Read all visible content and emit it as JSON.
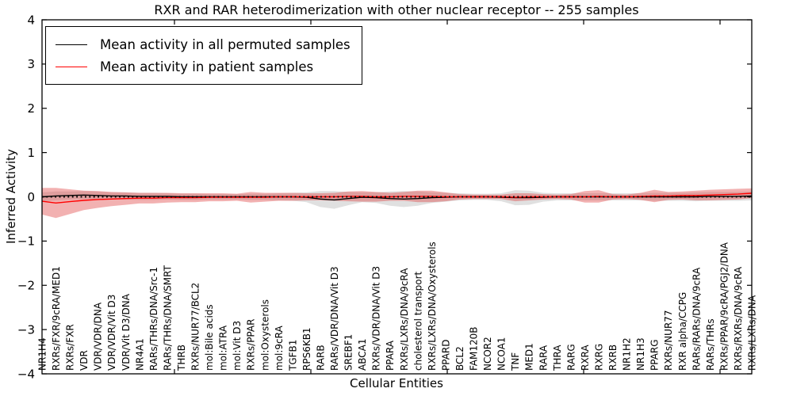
{
  "title": "RXR and RAR heterodimerization with other nuclear receptor -- 255 samples",
  "axes": {
    "x_label": "Cellular Entities",
    "y_label": "Inferred Activity",
    "y_tick_labels": [
      "4",
      "3",
      "2",
      "1",
      "0",
      "−1",
      "−2",
      "−3",
      "−4"
    ],
    "y_tick_values": [
      4,
      3,
      2,
      1,
      0,
      -1,
      -2,
      -3,
      -4
    ]
  },
  "legend": {
    "items": [
      {
        "label": "Mean activity in all permuted samples",
        "color": "#000000"
      },
      {
        "label": "Mean activity in patient samples",
        "color": "#ff0000"
      }
    ]
  },
  "colors": {
    "permuted_line": "#000000",
    "patient_line": "#ff0000",
    "permuted_band": "#999999",
    "patient_band": "#dd3333",
    "zero_line": "#000000",
    "axis": "#000000"
  },
  "chart_data": {
    "type": "line",
    "title": "RXR and RAR heterodimerization with other nuclear receptor -- 255 samples",
    "xlabel": "Cellular Entities",
    "ylabel": "Inferred Activity",
    "ylim": [
      -4,
      4
    ],
    "grid": false,
    "legend_position": "upper left",
    "zero_line_dotted": true,
    "categories": [
      "NR1H4",
      "RXRs/FXR/9cRA/MED1",
      "RXRs/FXR",
      "VDR",
      "VDR/VDR/DNA",
      "VDR/VDR/Vit D3",
      "VDR/Vit D3/DNA",
      "NR4A1",
      "RARs/THRs/DNA/Src-1",
      "RARs/THRs/DNA/SMRT",
      "THRB",
      "RXRs/NUR77/BCL2",
      "mol:Bile acids",
      "mol:ATRA",
      "mol:Vit D3",
      "RXRs/PPAR",
      "mol:Oxysterols",
      "mol:9cRA",
      "TGFB1",
      "RPS6KB1",
      "RARB",
      "RARs/VDR/DNA/Vit D3",
      "SREBF1",
      "ABCA1",
      "RXRs/VDR/DNA/Vit D3",
      "PPARA",
      "RXRs/LXRs/DNA/9cRA",
      "cholesterol transport",
      "RXRs/LXRs/DNA/Oxysterols",
      "PPARD",
      "BCL2",
      "FAM120B",
      "NCOR2",
      "NCOA1",
      "TNF",
      "MED1",
      "RARA",
      "THRA",
      "RARG",
      "RXRA",
      "RXRG",
      "RXRB",
      "NR1H2",
      "NR1H3",
      "PPARG",
      "RXRs/NUR77",
      "RXR alpha/CCPG",
      "RARs/RARs/DNA/9cRA",
      "RARs/THRs",
      "RXRs/PPAR/9cRA/PGJ2/DNA",
      "RXRs/RXRs/DNA/9cRA",
      "RXRs/LXRs/DNA"
    ],
    "series": [
      {
        "name": "Mean activity in all permuted samples",
        "color": "#000000",
        "band_color": "#999999",
        "band_opacity": 0.3,
        "values": [
          0.0,
          0.02,
          0.03,
          0.04,
          0.03,
          0.02,
          0.02,
          0.01,
          0.01,
          0.01,
          0.0,
          0.0,
          0.0,
          0.0,
          0.0,
          0.0,
          0.0,
          0.0,
          0.0,
          -0.01,
          -0.05,
          -0.07,
          -0.04,
          -0.01,
          -0.02,
          -0.04,
          -0.05,
          -0.04,
          -0.02,
          -0.01,
          0.0,
          0.0,
          0.0,
          -0.01,
          -0.02,
          -0.02,
          -0.01,
          0.0,
          0.0,
          0.0,
          0.0,
          0.0,
          0.0,
          0.0,
          0.0,
          0.0,
          0.0,
          0.0,
          0.01,
          0.01,
          0.01,
          0.02
        ],
        "std": [
          0.1,
          0.1,
          0.09,
          0.09,
          0.09,
          0.08,
          0.08,
          0.08,
          0.08,
          0.07,
          0.07,
          0.07,
          0.06,
          0.06,
          0.06,
          0.07,
          0.07,
          0.08,
          0.09,
          0.11,
          0.18,
          0.2,
          0.15,
          0.11,
          0.12,
          0.16,
          0.18,
          0.16,
          0.12,
          0.1,
          0.08,
          0.07,
          0.07,
          0.09,
          0.17,
          0.16,
          0.1,
          0.08,
          0.08,
          0.08,
          0.08,
          0.08,
          0.08,
          0.08,
          0.09,
          0.09,
          0.09,
          0.1,
          0.1,
          0.1,
          0.1,
          0.1
        ]
      },
      {
        "name": "Mean activity in patient samples",
        "color": "#ff0000",
        "band_color": "#dd3333",
        "band_opacity": 0.38,
        "values": [
          -0.1,
          -0.14,
          -0.11,
          -0.08,
          -0.06,
          -0.05,
          -0.04,
          -0.03,
          -0.03,
          -0.02,
          -0.02,
          -0.02,
          -0.01,
          -0.01,
          -0.01,
          -0.01,
          -0.01,
          0.0,
          0.0,
          0.0,
          0.0,
          0.0,
          0.01,
          0.01,
          0.0,
          0.0,
          0.01,
          0.01,
          0.01,
          0.0,
          0.0,
          0.0,
          0.0,
          0.0,
          -0.01,
          0.0,
          0.0,
          0.0,
          0.0,
          0.0,
          0.01,
          0.0,
          0.0,
          0.01,
          0.02,
          0.02,
          0.03,
          0.03,
          0.04,
          0.05,
          0.06,
          0.08
        ],
        "std": [
          0.3,
          0.34,
          0.28,
          0.22,
          0.19,
          0.16,
          0.14,
          0.12,
          0.12,
          0.11,
          0.1,
          0.1,
          0.09,
          0.09,
          0.08,
          0.12,
          0.1,
          0.09,
          0.09,
          0.08,
          0.08,
          0.09,
          0.11,
          0.12,
          0.11,
          0.09,
          0.1,
          0.13,
          0.13,
          0.1,
          0.06,
          0.05,
          0.05,
          0.05,
          0.09,
          0.08,
          0.06,
          0.05,
          0.06,
          0.13,
          0.14,
          0.06,
          0.05,
          0.08,
          0.14,
          0.09,
          0.09,
          0.11,
          0.12,
          0.12,
          0.12,
          0.11
        ]
      }
    ]
  }
}
